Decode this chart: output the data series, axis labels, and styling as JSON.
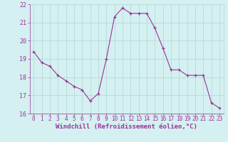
{
  "x": [
    0,
    1,
    2,
    3,
    4,
    5,
    6,
    7,
    8,
    9,
    10,
    11,
    12,
    13,
    14,
    15,
    16,
    17,
    18,
    19,
    20,
    21,
    22,
    23
  ],
  "y": [
    19.4,
    18.8,
    18.6,
    18.1,
    17.8,
    17.5,
    17.3,
    16.7,
    17.1,
    19.0,
    21.3,
    21.8,
    21.5,
    21.5,
    21.5,
    20.7,
    19.6,
    18.4,
    18.4,
    18.1,
    18.1,
    18.1,
    16.6,
    16.3
  ],
  "line_color": "#993399",
  "marker": "+",
  "bg_color": "#d4f0f0",
  "grid_color": "#b8dada",
  "xlabel": "Windchill (Refroidissement éolien,°C)",
  "xlabel_color": "#993399",
  "tick_color": "#993399",
  "axis_color": "#993399",
  "ylim": [
    16,
    22
  ],
  "xlim": [
    -0.5,
    23.5
  ],
  "yticks": [
    16,
    17,
    18,
    19,
    20,
    21,
    22
  ],
  "xticks": [
    0,
    1,
    2,
    3,
    4,
    5,
    6,
    7,
    8,
    9,
    10,
    11,
    12,
    13,
    14,
    15,
    16,
    17,
    18,
    19,
    20,
    21,
    22,
    23
  ],
  "tick_fontsize": 5.5,
  "xlabel_fontsize": 6.5
}
